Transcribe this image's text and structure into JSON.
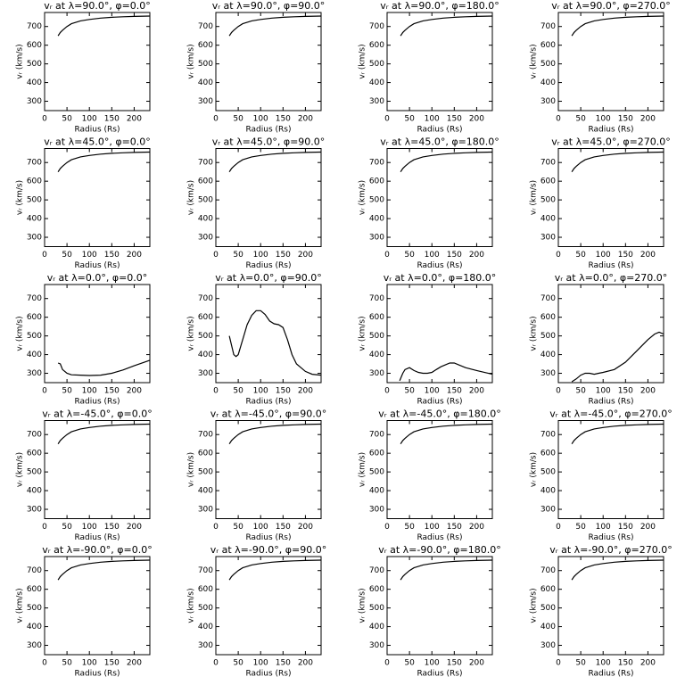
{
  "chart_data": [
    {
      "type": "line",
      "title": "vᵣ at λ=90.0°, φ=0.0°",
      "x_label": "Radius (Rs)",
      "y_label": "vᵣ (km/s)",
      "x": [
        30,
        35,
        40,
        50,
        60,
        80,
        100,
        125,
        150,
        175,
        200,
        235
      ],
      "values": [
        650,
        668,
        680,
        700,
        715,
        730,
        738,
        745,
        749,
        752,
        754,
        756
      ],
      "color": "#000000",
      "xlim": [
        0,
        235
      ],
      "ylim": [
        250,
        775
      ],
      "xticks": [
        0,
        50,
        100,
        150,
        200
      ],
      "yticks": [
        300,
        400,
        500,
        600,
        700
      ]
    },
    {
      "type": "line",
      "title": "vᵣ at λ=90.0°, φ=90.0°",
      "x_label": "Radius (Rs)",
      "y_label": "vᵣ (km/s)",
      "x": [
        30,
        35,
        40,
        50,
        60,
        80,
        100,
        125,
        150,
        175,
        200,
        235
      ],
      "values": [
        650,
        668,
        680,
        700,
        715,
        730,
        738,
        745,
        749,
        752,
        754,
        756
      ],
      "color": "#000000",
      "xlim": [
        0,
        235
      ],
      "ylim": [
        250,
        775
      ],
      "xticks": [
        0,
        50,
        100,
        150,
        200
      ],
      "yticks": [
        300,
        400,
        500,
        600,
        700
      ]
    },
    {
      "type": "line",
      "title": "vᵣ at λ=90.0°, φ=180.0°",
      "x_label": "Radius (Rs)",
      "y_label": "vᵣ (km/s)",
      "x": [
        30,
        35,
        40,
        50,
        60,
        80,
        100,
        125,
        150,
        175,
        200,
        235
      ],
      "values": [
        650,
        668,
        680,
        700,
        715,
        730,
        738,
        745,
        749,
        752,
        754,
        756
      ],
      "color": "#000000",
      "xlim": [
        0,
        235
      ],
      "ylim": [
        250,
        775
      ],
      "xticks": [
        0,
        50,
        100,
        150,
        200
      ],
      "yticks": [
        300,
        400,
        500,
        600,
        700
      ]
    },
    {
      "type": "line",
      "title": "vᵣ at λ=90.0°, φ=270.0°",
      "x_label": "Radius (Rs)",
      "y_label": "vᵣ (km/s)",
      "x": [
        30,
        35,
        40,
        50,
        60,
        80,
        100,
        125,
        150,
        175,
        200,
        235
      ],
      "values": [
        650,
        668,
        680,
        700,
        715,
        730,
        738,
        745,
        749,
        752,
        754,
        756
      ],
      "color": "#000000",
      "xlim": [
        0,
        235
      ],
      "ylim": [
        250,
        775
      ],
      "xticks": [
        0,
        50,
        100,
        150,
        200
      ],
      "yticks": [
        300,
        400,
        500,
        600,
        700
      ]
    },
    {
      "type": "line",
      "title": "vᵣ at λ=45.0°, φ=0.0°",
      "x_label": "Radius (Rs)",
      "y_label": "vᵣ (km/s)",
      "x": [
        30,
        35,
        40,
        50,
        60,
        80,
        100,
        125,
        150,
        175,
        200,
        235
      ],
      "values": [
        650,
        668,
        680,
        700,
        715,
        730,
        738,
        745,
        749,
        752,
        754,
        756
      ],
      "color": "#000000",
      "xlim": [
        0,
        235
      ],
      "ylim": [
        250,
        775
      ],
      "xticks": [
        0,
        50,
        100,
        150,
        200
      ],
      "yticks": [
        300,
        400,
        500,
        600,
        700
      ]
    },
    {
      "type": "line",
      "title": "vᵣ at λ=45.0°, φ=90.0°",
      "x_label": "Radius (Rs)",
      "y_label": "vᵣ (km/s)",
      "x": [
        30,
        35,
        40,
        50,
        60,
        80,
        100,
        125,
        150,
        175,
        200,
        235
      ],
      "values": [
        650,
        668,
        680,
        700,
        715,
        730,
        738,
        745,
        749,
        752,
        754,
        756
      ],
      "color": "#000000",
      "xlim": [
        0,
        235
      ],
      "ylim": [
        250,
        775
      ],
      "xticks": [
        0,
        50,
        100,
        150,
        200
      ],
      "yticks": [
        300,
        400,
        500,
        600,
        700
      ]
    },
    {
      "type": "line",
      "title": "vᵣ at λ=45.0°, φ=180.0°",
      "x_label": "Radius (Rs)",
      "y_label": "vᵣ (km/s)",
      "x": [
        30,
        35,
        40,
        50,
        60,
        80,
        100,
        125,
        150,
        175,
        200,
        235
      ],
      "values": [
        650,
        668,
        680,
        700,
        715,
        730,
        738,
        745,
        749,
        752,
        754,
        756
      ],
      "color": "#000000",
      "xlim": [
        0,
        235
      ],
      "ylim": [
        250,
        775
      ],
      "xticks": [
        0,
        50,
        100,
        150,
        200
      ],
      "yticks": [
        300,
        400,
        500,
        600,
        700
      ]
    },
    {
      "type": "line",
      "title": "vᵣ at λ=45.0°, φ=270.0°",
      "x_label": "Radius (Rs)",
      "y_label": "vᵣ (km/s)",
      "x": [
        30,
        35,
        40,
        50,
        60,
        80,
        100,
        125,
        150,
        175,
        200,
        235
      ],
      "values": [
        650,
        668,
        680,
        700,
        715,
        730,
        738,
        745,
        749,
        752,
        754,
        756
      ],
      "color": "#000000",
      "xlim": [
        0,
        235
      ],
      "ylim": [
        250,
        775
      ],
      "xticks": [
        0,
        50,
        100,
        150,
        200
      ],
      "yticks": [
        300,
        400,
        500,
        600,
        700
      ]
    },
    {
      "type": "line",
      "title": "vᵣ at λ=0.0°, φ=0.0°",
      "x_label": "Radius (Rs)",
      "y_label": "vᵣ (km/s)",
      "x": [
        30,
        35,
        40,
        50,
        60,
        80,
        100,
        125,
        150,
        175,
        200,
        235
      ],
      "values": [
        355,
        350,
        320,
        300,
        292,
        290,
        288,
        290,
        300,
        318,
        340,
        370
      ],
      "color": "#000000",
      "xlim": [
        0,
        235
      ],
      "ylim": [
        250,
        775
      ],
      "xticks": [
        0,
        50,
        100,
        150,
        200
      ],
      "yticks": [
        300,
        400,
        500,
        600,
        700
      ]
    },
    {
      "type": "line",
      "title": "vᵣ at λ=0.0°, φ=90.0°",
      "x_label": "Radius (Rs)",
      "y_label": "vᵣ (km/s)",
      "x": [
        30,
        35,
        40,
        45,
        50,
        60,
        70,
        80,
        90,
        100,
        110,
        120,
        130,
        140,
        150,
        160,
        170,
        180,
        190,
        200,
        215,
        235
      ],
      "values": [
        500,
        450,
        400,
        390,
        400,
        480,
        560,
        610,
        635,
        635,
        615,
        580,
        565,
        560,
        545,
        480,
        400,
        350,
        330,
        310,
        295,
        290
      ],
      "color": "#000000",
      "xlim": [
        0,
        235
      ],
      "ylim": [
        250,
        775
      ],
      "xticks": [
        0,
        50,
        100,
        150,
        200
      ],
      "yticks": [
        300,
        400,
        500,
        600,
        700
      ]
    },
    {
      "type": "line",
      "title": "vᵣ at λ=0.0°, φ=180.0°",
      "x_label": "Radius (Rs)",
      "y_label": "vᵣ (km/s)",
      "x": [
        28,
        35,
        40,
        50,
        60,
        70,
        80,
        90,
        100,
        110,
        120,
        130,
        140,
        150,
        160,
        175,
        200,
        235
      ],
      "values": [
        260,
        300,
        320,
        330,
        315,
        305,
        300,
        300,
        305,
        320,
        335,
        345,
        355,
        355,
        345,
        330,
        315,
        295
      ],
      "color": "#000000",
      "xlim": [
        0,
        235
      ],
      "ylim": [
        250,
        775
      ],
      "xticks": [
        0,
        50,
        100,
        150,
        200
      ],
      "yticks": [
        300,
        400,
        500,
        600,
        700
      ]
    },
    {
      "type": "line",
      "title": "vᵣ at λ=0.0°, φ=270.0°",
      "x_label": "Radius (Rs)",
      "y_label": "vᵣ (km/s)",
      "x": [
        30,
        40,
        50,
        60,
        70,
        80,
        90,
        100,
        125,
        150,
        175,
        200,
        215,
        225,
        235
      ],
      "values": [
        255,
        270,
        290,
        300,
        300,
        295,
        300,
        305,
        320,
        360,
        420,
        480,
        510,
        520,
        510
      ],
      "color": "#000000",
      "xlim": [
        0,
        235
      ],
      "ylim": [
        250,
        775
      ],
      "xticks": [
        0,
        50,
        100,
        150,
        200
      ],
      "yticks": [
        300,
        400,
        500,
        600,
        700
      ]
    },
    {
      "type": "line",
      "title": "vᵣ at λ=-45.0°, φ=0.0°",
      "x_label": "Radius (Rs)",
      "y_label": "vᵣ (km/s)",
      "x": [
        30,
        35,
        40,
        50,
        60,
        80,
        100,
        125,
        150,
        175,
        200,
        235
      ],
      "values": [
        650,
        668,
        680,
        700,
        715,
        730,
        738,
        745,
        749,
        752,
        754,
        756
      ],
      "color": "#000000",
      "xlim": [
        0,
        235
      ],
      "ylim": [
        250,
        775
      ],
      "xticks": [
        0,
        50,
        100,
        150,
        200
      ],
      "yticks": [
        300,
        400,
        500,
        600,
        700
      ]
    },
    {
      "type": "line",
      "title": "vᵣ at λ=-45.0°, φ=90.0°",
      "x_label": "Radius (Rs)",
      "y_label": "vᵣ (km/s)",
      "x": [
        30,
        35,
        40,
        50,
        60,
        80,
        100,
        125,
        150,
        175,
        200,
        235
      ],
      "values": [
        650,
        668,
        680,
        700,
        715,
        730,
        738,
        745,
        749,
        752,
        754,
        756
      ],
      "color": "#000000",
      "xlim": [
        0,
        235
      ],
      "ylim": [
        250,
        775
      ],
      "xticks": [
        0,
        50,
        100,
        150,
        200
      ],
      "yticks": [
        300,
        400,
        500,
        600,
        700
      ]
    },
    {
      "type": "line",
      "title": "vᵣ at λ=-45.0°, φ=180.0°",
      "x_label": "Radius (Rs)",
      "y_label": "vᵣ (km/s)",
      "x": [
        30,
        35,
        40,
        50,
        60,
        80,
        100,
        125,
        150,
        175,
        200,
        235
      ],
      "values": [
        650,
        668,
        680,
        700,
        715,
        730,
        738,
        745,
        749,
        752,
        754,
        756
      ],
      "color": "#000000",
      "xlim": [
        0,
        235
      ],
      "ylim": [
        250,
        775
      ],
      "xticks": [
        0,
        50,
        100,
        150,
        200
      ],
      "yticks": [
        300,
        400,
        500,
        600,
        700
      ]
    },
    {
      "type": "line",
      "title": "vᵣ at λ=-45.0°, φ=270.0°",
      "x_label": "Radius (Rs)",
      "y_label": "vᵣ (km/s)",
      "x": [
        30,
        35,
        40,
        50,
        60,
        80,
        100,
        125,
        150,
        175,
        200,
        235
      ],
      "values": [
        650,
        668,
        680,
        700,
        715,
        730,
        738,
        745,
        749,
        752,
        754,
        756
      ],
      "color": "#000000",
      "xlim": [
        0,
        235
      ],
      "ylim": [
        250,
        775
      ],
      "xticks": [
        0,
        50,
        100,
        150,
        200
      ],
      "yticks": [
        300,
        400,
        500,
        600,
        700
      ]
    },
    {
      "type": "line",
      "title": "vᵣ at λ=-90.0°, φ=0.0°",
      "x_label": "Radius (Rs)",
      "y_label": "vᵣ (km/s)",
      "x": [
        30,
        35,
        40,
        50,
        60,
        80,
        100,
        125,
        150,
        175,
        200,
        235
      ],
      "values": [
        650,
        668,
        680,
        700,
        715,
        730,
        738,
        745,
        749,
        752,
        754,
        756
      ],
      "color": "#000000",
      "xlim": [
        0,
        235
      ],
      "ylim": [
        250,
        775
      ],
      "xticks": [
        0,
        50,
        100,
        150,
        200
      ],
      "yticks": [
        300,
        400,
        500,
        600,
        700
      ]
    },
    {
      "type": "line",
      "title": "vᵣ at λ=-90.0°, φ=90.0°",
      "x_label": "Radius (Rs)",
      "y_label": "vᵣ (km/s)",
      "x": [
        30,
        35,
        40,
        50,
        60,
        80,
        100,
        125,
        150,
        175,
        200,
        235
      ],
      "values": [
        650,
        668,
        680,
        700,
        715,
        730,
        738,
        745,
        749,
        752,
        754,
        756
      ],
      "color": "#000000",
      "xlim": [
        0,
        235
      ],
      "ylim": [
        250,
        775
      ],
      "xticks": [
        0,
        50,
        100,
        150,
        200
      ],
      "yticks": [
        300,
        400,
        500,
        600,
        700
      ]
    },
    {
      "type": "line",
      "title": "vᵣ at λ=-90.0°, φ=180.0°",
      "x_label": "Radius (Rs)",
      "y_label": "vᵣ (km/s)",
      "x": [
        30,
        35,
        40,
        50,
        60,
        80,
        100,
        125,
        150,
        175,
        200,
        235
      ],
      "values": [
        650,
        668,
        680,
        700,
        715,
        730,
        738,
        745,
        749,
        752,
        754,
        756
      ],
      "color": "#000000",
      "xlim": [
        0,
        235
      ],
      "ylim": [
        250,
        775
      ],
      "xticks": [
        0,
        50,
        100,
        150,
        200
      ],
      "yticks": [
        300,
        400,
        500,
        600,
        700
      ]
    },
    {
      "type": "line",
      "title": "vᵣ at λ=-90.0°, φ=270.0°",
      "x_label": "Radius (Rs)",
      "y_label": "vᵣ (km/s)",
      "x": [
        30,
        35,
        40,
        50,
        60,
        80,
        100,
        125,
        150,
        175,
        200,
        235
      ],
      "values": [
        650,
        668,
        680,
        700,
        715,
        730,
        738,
        745,
        749,
        752,
        754,
        756
      ],
      "color": "#000000",
      "xlim": [
        0,
        235
      ],
      "ylim": [
        250,
        775
      ],
      "xticks": [
        0,
        50,
        100,
        150,
        200
      ],
      "yticks": [
        300,
        400,
        500,
        600,
        700
      ]
    }
  ]
}
